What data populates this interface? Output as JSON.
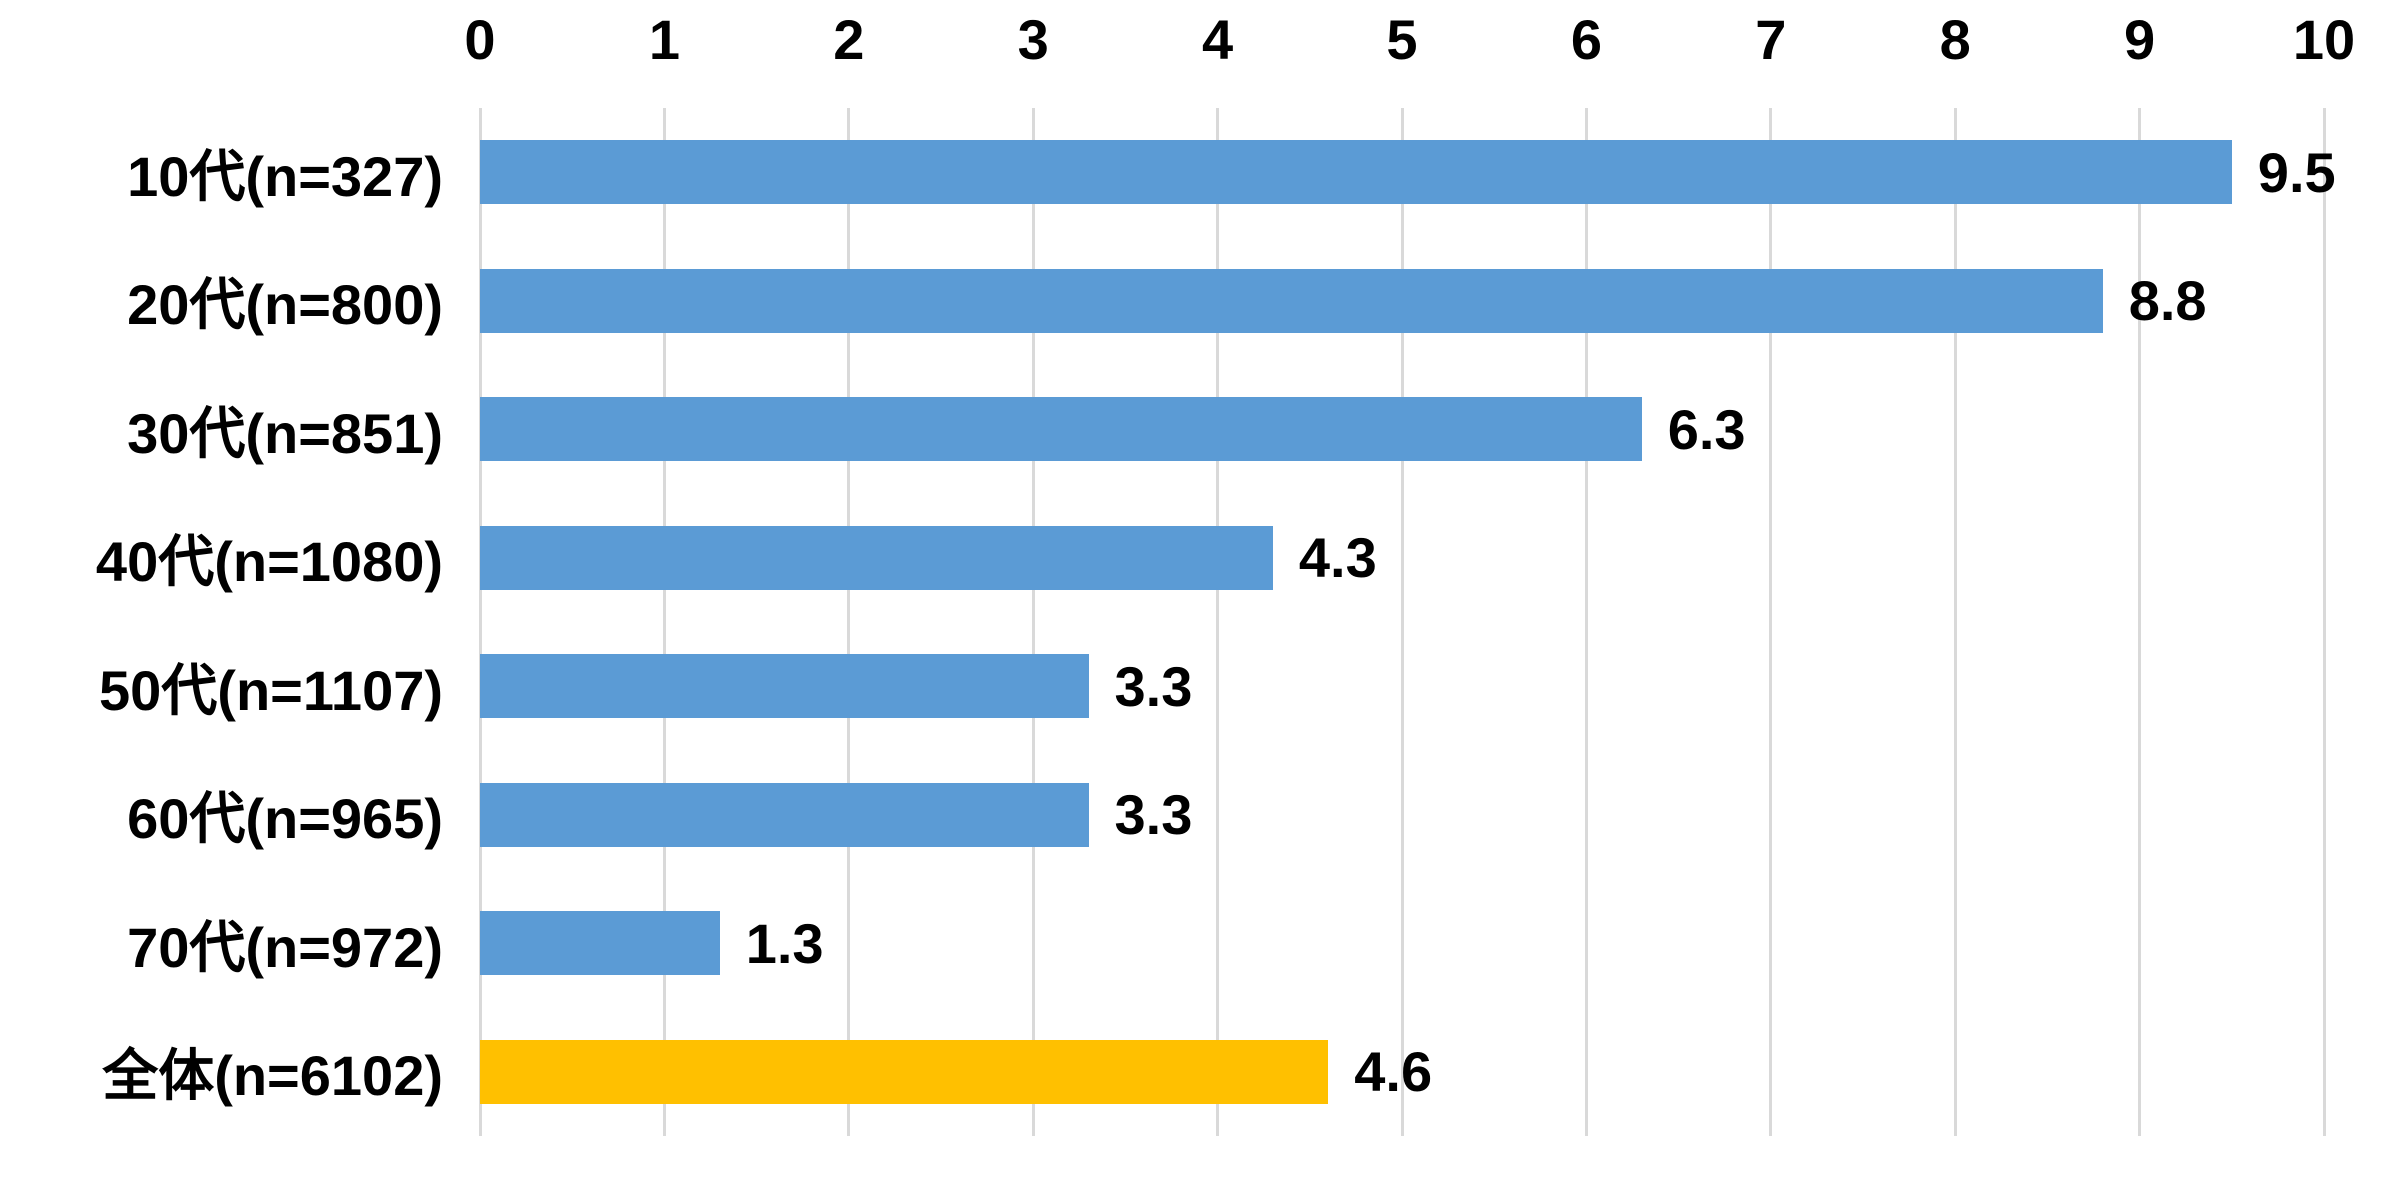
{
  "chart_data": {
    "type": "bar",
    "orientation": "horizontal",
    "title": "",
    "xlabel": "",
    "ylabel": "",
    "categories": [
      "10代(n=327)",
      "20代(n=800)",
      "30代(n=851)",
      "40代(n=1080)",
      "50代(n=1107)",
      "60代(n=965)",
      "70代(n=972)",
      "全体(n=6102)"
    ],
    "values": [
      9.5,
      8.8,
      6.3,
      4.3,
      3.3,
      3.3,
      1.3,
      4.6
    ],
    "value_labels": [
      "9.5",
      "8.8",
      "6.3",
      "4.3",
      "3.3",
      "3.3",
      "1.3",
      "4.6"
    ],
    "bar_colors": [
      "#5B9BD5",
      "#5B9BD5",
      "#5B9BD5",
      "#5B9BD5",
      "#5B9BD5",
      "#5B9BD5",
      "#5B9BD5",
      "#FFC000"
    ],
    "xlim": [
      0,
      10
    ],
    "x_ticks": [
      "0",
      "1",
      "2",
      "3",
      "4",
      "5",
      "6",
      "7",
      "8",
      "9",
      "10"
    ],
    "tick_position": "top",
    "grid": true,
    "gridline_color": "#D9D9D9",
    "legend_position": "none",
    "background_color": "#FFFFFF",
    "text_color": "#000000"
  }
}
